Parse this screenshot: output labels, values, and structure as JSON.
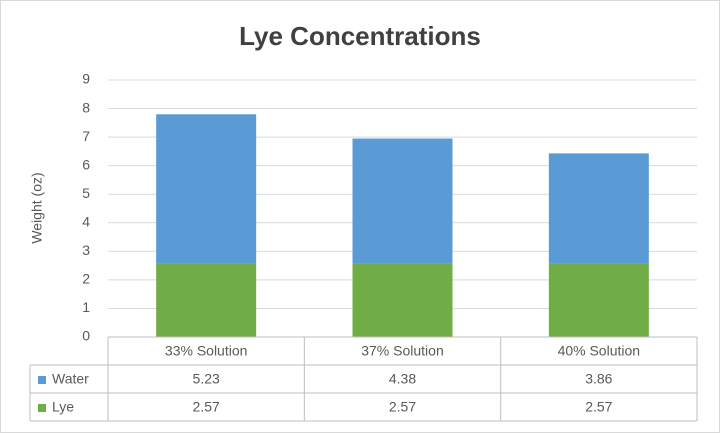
{
  "chart_data": {
    "type": "stacked-bar",
    "title": "Lye Concentrations",
    "y_label": "Weight (oz)",
    "categories": [
      "33% Solution",
      "37% Solution",
      "40% Solution"
    ],
    "series": [
      {
        "name": "Water",
        "color": "#5b9bd5",
        "values": [
          5.23,
          4.38,
          3.86
        ]
      },
      {
        "name": "Lye",
        "color": "#70ad47",
        "values": [
          2.57,
          2.57,
          2.57
        ]
      }
    ],
    "ylim": [
      0,
      9
    ],
    "yticks": [
      0,
      1,
      2,
      3,
      4,
      5,
      6,
      7,
      8,
      9
    ],
    "grid": true,
    "data_table": true
  }
}
